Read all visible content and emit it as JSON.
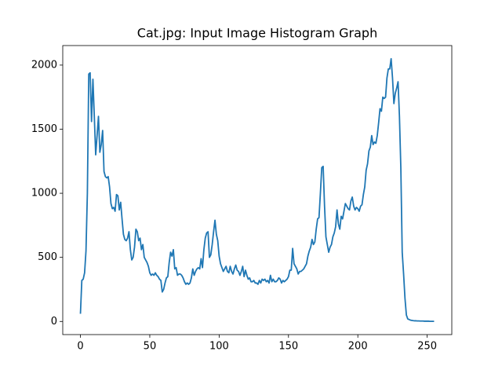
{
  "chart_data": {
    "type": "line",
    "title": "Cat.jpg: Input Image Histogram Graph",
    "x": [
      0,
      1,
      2,
      3,
      4,
      5,
      6,
      7,
      8,
      9,
      10,
      11,
      12,
      13,
      14,
      15,
      16,
      17,
      18,
      19,
      20,
      21,
      22,
      23,
      24,
      25,
      26,
      27,
      28,
      29,
      30,
      31,
      32,
      33,
      34,
      35,
      36,
      37,
      38,
      39,
      40,
      41,
      42,
      43,
      44,
      45,
      46,
      47,
      48,
      49,
      50,
      51,
      52,
      53,
      54,
      55,
      56,
      57,
      58,
      59,
      60,
      61,
      62,
      63,
      64,
      65,
      66,
      67,
      68,
      69,
      70,
      71,
      72,
      73,
      74,
      75,
      76,
      77,
      78,
      79,
      80,
      81,
      82,
      83,
      84,
      85,
      86,
      87,
      88,
      89,
      90,
      91,
      92,
      93,
      94,
      95,
      96,
      97,
      98,
      99,
      100,
      101,
      102,
      103,
      104,
      105,
      106,
      107,
      108,
      109,
      110,
      111,
      112,
      113,
      114,
      115,
      116,
      117,
      118,
      119,
      120,
      121,
      122,
      123,
      124,
      125,
      126,
      127,
      128,
      129,
      130,
      131,
      132,
      133,
      134,
      135,
      136,
      137,
      138,
      139,
      140,
      141,
      142,
      143,
      144,
      145,
      146,
      147,
      148,
      149,
      150,
      151,
      152,
      153,
      154,
      155,
      156,
      157,
      158,
      159,
      160,
      161,
      162,
      163,
      164,
      165,
      166,
      167,
      168,
      169,
      170,
      171,
      172,
      173,
      174,
      175,
      176,
      177,
      178,
      179,
      180,
      181,
      182,
      183,
      184,
      185,
      186,
      187,
      188,
      189,
      190,
      191,
      192,
      193,
      194,
      195,
      196,
      197,
      198,
      199,
      200,
      201,
      202,
      203,
      204,
      205,
      206,
      207,
      208,
      209,
      210,
      211,
      212,
      213,
      214,
      215,
      216,
      217,
      218,
      219,
      220,
      221,
      222,
      223,
      224,
      225,
      226,
      227,
      228,
      229,
      230,
      231,
      232,
      233,
      234,
      235,
      236,
      237,
      238,
      239,
      240,
      241,
      242,
      243,
      244,
      245,
      246,
      247,
      248,
      249,
      250,
      251,
      252,
      253,
      254,
      255
    ],
    "values": [
      60,
      320,
      330,
      380,
      550,
      1000,
      1930,
      1940,
      1560,
      1890,
      1600,
      1300,
      1450,
      1600,
      1320,
      1380,
      1490,
      1170,
      1130,
      1120,
      1130,
      1050,
      920,
      880,
      890,
      860,
      990,
      980,
      870,
      930,
      800,
      680,
      640,
      630,
      650,
      700,
      560,
      480,
      500,
      580,
      720,
      700,
      630,
      650,
      560,
      600,
      500,
      480,
      460,
      430,
      380,
      360,
      370,
      360,
      380,
      360,
      350,
      330,
      320,
      230,
      250,
      300,
      340,
      350,
      460,
      540,
      510,
      560,
      410,
      420,
      360,
      370,
      370,
      360,
      340,
      310,
      290,
      300,
      290,
      300,
      340,
      410,
      360,
      390,
      410,
      420,
      410,
      490,
      420,
      560,
      650,
      690,
      700,
      500,
      520,
      600,
      700,
      790,
      680,
      630,
      510,
      450,
      420,
      390,
      410,
      430,
      390,
      380,
      430,
      390,
      370,
      410,
      440,
      400,
      390,
      360,
      390,
      430,
      350,
      400,
      360,
      330,
      340,
      310,
      310,
      320,
      300,
      300,
      290,
      320,
      300,
      330,
      320,
      330,
      310,
      320,
      300,
      360,
      310,
      330,
      310,
      310,
      320,
      340,
      330,
      300,
      320,
      310,
      320,
      330,
      350,
      400,
      400,
      570,
      450,
      430,
      410,
      370,
      390,
      390,
      400,
      410,
      430,
      450,
      510,
      550,
      580,
      640,
      600,
      620,
      720,
      800,
      810,
      1000,
      1200,
      1210,
      900,
      660,
      600,
      540,
      580,
      600,
      660,
      690,
      740,
      870,
      760,
      720,
      820,
      800,
      860,
      920,
      900,
      880,
      870,
      940,
      970,
      900,
      870,
      890,
      880,
      860,
      900,
      910,
      990,
      1050,
      1180,
      1230,
      1330,
      1360,
      1450,
      1380,
      1400,
      1390,
      1450,
      1550,
      1660,
      1640,
      1750,
      1740,
      1750,
      1900,
      1970,
      1970,
      2050,
      1900,
      1700,
      1780,
      1820,
      1870,
      1600,
      1200,
      540,
      370,
      180,
      50,
      20,
      15,
      10,
      8,
      6,
      5,
      5,
      4,
      4,
      3,
      3,
      3,
      2,
      2,
      2,
      2,
      1,
      1,
      1,
      1
    ],
    "color": "#1f77b4",
    "xlim": [
      -12.75,
      267.75
    ],
    "xticks": [
      0,
      50,
      100,
      150,
      200,
      250
    ],
    "ylim": [
      -102.5,
      2152.5
    ],
    "yticks": [
      0,
      500,
      1000,
      1500,
      2000
    ]
  }
}
